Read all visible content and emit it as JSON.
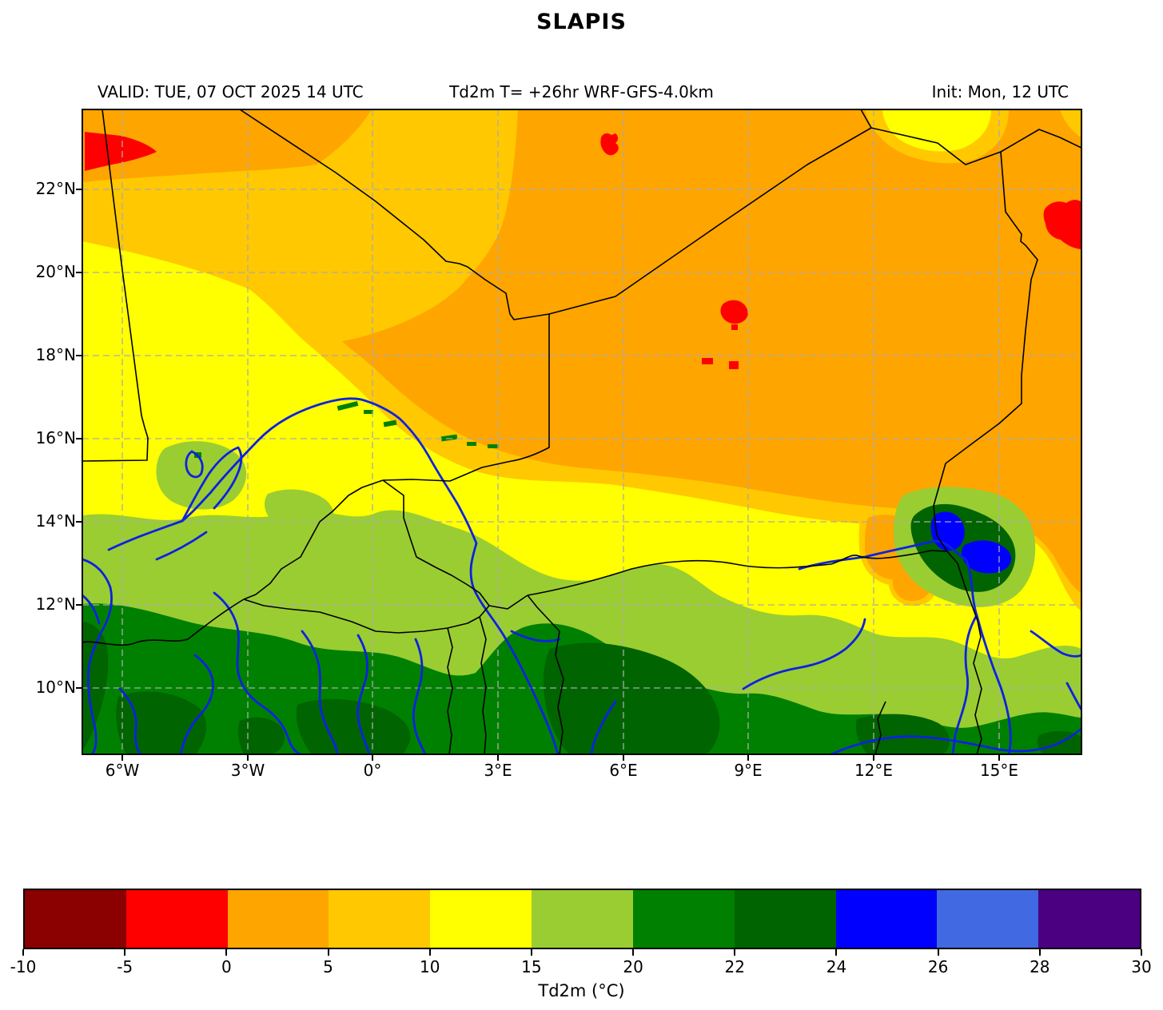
{
  "title": "SLAPIS",
  "header": {
    "valid": "VALID: TUE, 07 OCT 2025 14 UTC",
    "product": "Td2m T= +26hr WRF-GFS-4.0km",
    "init": "Init: Mon, 12 UTC"
  },
  "map": {
    "lat_tick_labels": [
      "22°N",
      "20°N",
      "18°N",
      "16°N",
      "14°N",
      "12°N",
      "10°N"
    ],
    "lon_tick_labels": [
      "6°W",
      "3°W",
      "0°",
      "3°E",
      "6°E",
      "9°E",
      "12°E",
      "15°E"
    ]
  },
  "colorbar": {
    "label": "Td2m (°C)",
    "tick_labels": [
      "-10",
      "-5",
      "0",
      "5",
      "10",
      "15",
      "20",
      "22",
      "24",
      "26",
      "28",
      "30"
    ],
    "segment_colors": [
      "#8b0000",
      "#ff0000",
      "#ffa500",
      "#ffc800",
      "#ffff00",
      "#9acd32",
      "#008000",
      "#006400",
      "#0000ff",
      "#4169e1",
      "#4b0082"
    ]
  },
  "chart_data": {
    "type": "heatmap",
    "subtype": "filled-contour weather map (dewpoint temperature over West Africa / Sahel)",
    "title": "SLAPIS",
    "annotations": [
      "VALID: TUE, 07 OCT 2025 14 UTC",
      "Td2m T= +26hr WRF-GFS-4.0km",
      "Init: Mon, 12 UTC"
    ],
    "colorbar_label": "Td2m (°C)",
    "levels_c": [
      -10,
      -5,
      0,
      5,
      10,
      15,
      20,
      22,
      24,
      26,
      28,
      30
    ],
    "level_colors": [
      "#8b0000",
      "#ff0000",
      "#ffa500",
      "#ffc800",
      "#ffff00",
      "#9acd32",
      "#008000",
      "#006400",
      "#0000ff",
      "#4169e1",
      "#4b0082"
    ],
    "x_tick_labels": [
      "6°W",
      "3°W",
      "0°",
      "3°E",
      "6°E",
      "9°E",
      "12°E",
      "15°E"
    ],
    "y_tick_labels": [
      "22°N",
      "20°N",
      "18°N",
      "16°N",
      "14°N",
      "12°N",
      "10°N"
    ],
    "grid": "dashed gray at 3° lon / 2° lat",
    "legend_position": "horizontal colorbar at bottom",
    "field_summary": "Dewpoints 0-5°C (orange) across the Sahara in the north/northeast with small -5-0°C (red) pockets; 5-10°C (gold) transition band; broad 10-15°C (yellow) Sahel band; 15-24°C greens to the south; 24-26°C (blue) maxima around Lake Chad; rivers in blue, national borders in black."
  }
}
